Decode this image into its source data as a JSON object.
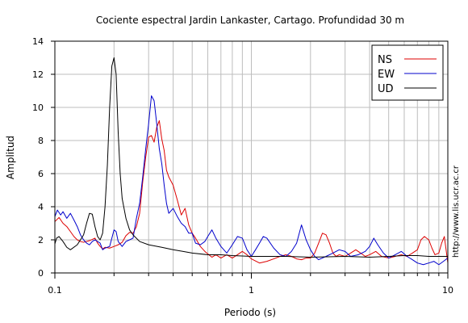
{
  "chart_data": {
    "type": "line",
    "title": "Cociente espectral Jardin Lankaster, Cartago. Profundidad 30 m",
    "xlabel": "Periodo (s)",
    "ylabel": "Amplitud",
    "xscale": "log",
    "xlim": [
      0.1,
      10
    ],
    "ylim": [
      0,
      14
    ],
    "x_tick_labels": [
      {
        "value": 0.1,
        "label": "0.1"
      },
      {
        "value": 1,
        "label": "1"
      },
      {
        "value": 10,
        "label": "10"
      }
    ],
    "y_ticks": [
      0,
      2,
      4,
      6,
      8,
      10,
      12,
      14
    ],
    "grid": true,
    "legend_position": "top-right",
    "side_text": "http://www.lis.ucr.ac.cr",
    "series": [
      {
        "name": "NS",
        "color": "#dd0000",
        "points": [
          [
            0.1,
            3.1
          ],
          [
            0.105,
            3.35
          ],
          [
            0.11,
            3.0
          ],
          [
            0.115,
            2.8
          ],
          [
            0.12,
            2.5
          ],
          [
            0.125,
            2.2
          ],
          [
            0.13,
            2.0
          ],
          [
            0.135,
            1.9
          ],
          [
            0.14,
            1.85
          ],
          [
            0.15,
            1.95
          ],
          [
            0.16,
            2.1
          ],
          [
            0.165,
            1.8
          ],
          [
            0.17,
            1.6
          ],
          [
            0.175,
            1.45
          ],
          [
            0.18,
            1.55
          ],
          [
            0.19,
            1.5
          ],
          [
            0.2,
            1.6
          ],
          [
            0.21,
            1.7
          ],
          [
            0.22,
            1.85
          ],
          [
            0.23,
            2.25
          ],
          [
            0.24,
            2.45
          ],
          [
            0.25,
            2.4
          ],
          [
            0.26,
            2.8
          ],
          [
            0.27,
            3.6
          ],
          [
            0.28,
            5.5
          ],
          [
            0.29,
            7.0
          ],
          [
            0.3,
            8.2
          ],
          [
            0.31,
            8.3
          ],
          [
            0.32,
            7.9
          ],
          [
            0.33,
            8.8
          ],
          [
            0.34,
            9.2
          ],
          [
            0.35,
            8.1
          ],
          [
            0.36,
            7.4
          ],
          [
            0.37,
            6.2
          ],
          [
            0.38,
            5.8
          ],
          [
            0.4,
            5.3
          ],
          [
            0.42,
            4.4
          ],
          [
            0.44,
            3.5
          ],
          [
            0.46,
            3.9
          ],
          [
            0.48,
            2.9
          ],
          [
            0.5,
            2.4
          ],
          [
            0.52,
            2.1
          ],
          [
            0.55,
            1.6
          ],
          [
            0.58,
            1.3
          ],
          [
            0.6,
            1.15
          ],
          [
            0.63,
            0.95
          ],
          [
            0.66,
            1.1
          ],
          [
            0.7,
            0.9
          ],
          [
            0.75,
            1.1
          ],
          [
            0.8,
            0.9
          ],
          [
            0.85,
            1.1
          ],
          [
            0.9,
            1.3
          ],
          [
            0.95,
            1.1
          ],
          [
            1.0,
            0.85
          ],
          [
            1.1,
            0.6
          ],
          [
            1.2,
            0.7
          ],
          [
            1.3,
            0.85
          ],
          [
            1.4,
            1.0
          ],
          [
            1.5,
            1.1
          ],
          [
            1.6,
            1.0
          ],
          [
            1.7,
            0.85
          ],
          [
            1.8,
            0.8
          ],
          [
            1.9,
            0.9
          ],
          [
            2.0,
            0.9
          ],
          [
            2.1,
            1.2
          ],
          [
            2.2,
            1.8
          ],
          [
            2.3,
            2.4
          ],
          [
            2.4,
            2.3
          ],
          [
            2.5,
            1.8
          ],
          [
            2.6,
            1.2
          ],
          [
            2.7,
            1.0
          ],
          [
            2.8,
            1.1
          ],
          [
            3.0,
            1.0
          ],
          [
            3.2,
            1.2
          ],
          [
            3.4,
            1.4
          ],
          [
            3.6,
            1.2
          ],
          [
            3.8,
            1.0
          ],
          [
            4.0,
            1.1
          ],
          [
            4.3,
            1.3
          ],
          [
            4.6,
            1.0
          ],
          [
            5.0,
            0.9
          ],
          [
            5.4,
            1.0
          ],
          [
            5.8,
            1.1
          ],
          [
            6.2,
            1.0
          ],
          [
            6.6,
            1.2
          ],
          [
            7.0,
            1.4
          ],
          [
            7.3,
            2.0
          ],
          [
            7.6,
            2.2
          ],
          [
            8.0,
            2.0
          ],
          [
            8.3,
            1.5
          ],
          [
            8.6,
            1.1
          ],
          [
            9.0,
            1.2
          ],
          [
            9.3,
            1.8
          ],
          [
            9.6,
            2.2
          ],
          [
            10.0,
            0.6
          ]
        ]
      },
      {
        "name": "EW",
        "color": "#0000cc",
        "points": [
          [
            0.1,
            3.4
          ],
          [
            0.103,
            3.8
          ],
          [
            0.107,
            3.5
          ],
          [
            0.11,
            3.7
          ],
          [
            0.115,
            3.3
          ],
          [
            0.12,
            3.6
          ],
          [
            0.125,
            3.2
          ],
          [
            0.13,
            2.8
          ],
          [
            0.135,
            2.3
          ],
          [
            0.14,
            2.0
          ],
          [
            0.145,
            1.8
          ],
          [
            0.15,
            1.7
          ],
          [
            0.155,
            1.9
          ],
          [
            0.16,
            2.0
          ],
          [
            0.17,
            1.8
          ],
          [
            0.175,
            1.4
          ],
          [
            0.18,
            1.5
          ],
          [
            0.19,
            1.6
          ],
          [
            0.2,
            2.6
          ],
          [
            0.205,
            2.5
          ],
          [
            0.21,
            1.9
          ],
          [
            0.22,
            1.6
          ],
          [
            0.23,
            1.9
          ],
          [
            0.24,
            2.0
          ],
          [
            0.25,
            2.1
          ],
          [
            0.26,
            3.3
          ],
          [
            0.27,
            4.2
          ],
          [
            0.28,
            5.8
          ],
          [
            0.29,
            7.5
          ],
          [
            0.3,
            9.0
          ],
          [
            0.31,
            10.7
          ],
          [
            0.32,
            10.4
          ],
          [
            0.33,
            9.0
          ],
          [
            0.34,
            7.5
          ],
          [
            0.35,
            6.6
          ],
          [
            0.36,
            5.3
          ],
          [
            0.37,
            4.2
          ],
          [
            0.38,
            3.6
          ],
          [
            0.4,
            3.9
          ],
          [
            0.42,
            3.4
          ],
          [
            0.44,
            3.0
          ],
          [
            0.46,
            2.8
          ],
          [
            0.48,
            2.4
          ],
          [
            0.5,
            2.4
          ],
          [
            0.52,
            1.8
          ],
          [
            0.55,
            1.7
          ],
          [
            0.58,
            1.9
          ],
          [
            0.6,
            2.2
          ],
          [
            0.63,
            2.6
          ],
          [
            0.66,
            2.1
          ],
          [
            0.7,
            1.6
          ],
          [
            0.75,
            1.2
          ],
          [
            0.8,
            1.7
          ],
          [
            0.85,
            2.2
          ],
          [
            0.9,
            2.1
          ],
          [
            0.95,
            1.4
          ],
          [
            1.0,
            1.0
          ],
          [
            1.05,
            1.4
          ],
          [
            1.1,
            1.8
          ],
          [
            1.15,
            2.2
          ],
          [
            1.2,
            2.1
          ],
          [
            1.3,
            1.5
          ],
          [
            1.4,
            1.1
          ],
          [
            1.5,
            1.0
          ],
          [
            1.6,
            1.3
          ],
          [
            1.7,
            1.8
          ],
          [
            1.8,
            2.9
          ],
          [
            1.9,
            2.0
          ],
          [
            2.0,
            1.4
          ],
          [
            2.1,
            1.0
          ],
          [
            2.2,
            0.8
          ],
          [
            2.4,
            1.0
          ],
          [
            2.6,
            1.2
          ],
          [
            2.8,
            1.4
          ],
          [
            3.0,
            1.3
          ],
          [
            3.2,
            1.0
          ],
          [
            3.5,
            1.1
          ],
          [
            3.8,
            1.3
          ],
          [
            4.0,
            1.6
          ],
          [
            4.2,
            2.1
          ],
          [
            4.4,
            1.7
          ],
          [
            4.7,
            1.2
          ],
          [
            5.0,
            0.9
          ],
          [
            5.4,
            1.1
          ],
          [
            5.8,
            1.3
          ],
          [
            6.2,
            1.0
          ],
          [
            6.6,
            0.8
          ],
          [
            7.0,
            0.6
          ],
          [
            7.5,
            0.5
          ],
          [
            8.0,
            0.6
          ],
          [
            8.5,
            0.7
          ],
          [
            9.0,
            0.5
          ],
          [
            9.5,
            0.7
          ],
          [
            10.0,
            0.9
          ]
        ]
      },
      {
        "name": "UD",
        "color": "#000000",
        "points": [
          [
            0.1,
            1.75
          ],
          [
            0.102,
            2.1
          ],
          [
            0.105,
            2.2
          ],
          [
            0.11,
            1.9
          ],
          [
            0.115,
            1.55
          ],
          [
            0.12,
            1.4
          ],
          [
            0.13,
            1.7
          ],
          [
            0.14,
            2.3
          ],
          [
            0.145,
            3.0
          ],
          [
            0.15,
            3.6
          ],
          [
            0.155,
            3.55
          ],
          [
            0.16,
            2.8
          ],
          [
            0.165,
            2.2
          ],
          [
            0.17,
            2.0
          ],
          [
            0.175,
            2.4
          ],
          [
            0.18,
            4.0
          ],
          [
            0.185,
            6.5
          ],
          [
            0.19,
            10.0
          ],
          [
            0.195,
            12.5
          ],
          [
            0.2,
            13.0
          ],
          [
            0.205,
            12.0
          ],
          [
            0.21,
            8.5
          ],
          [
            0.215,
            6.0
          ],
          [
            0.22,
            4.5
          ],
          [
            0.23,
            3.3
          ],
          [
            0.24,
            2.6
          ],
          [
            0.25,
            2.3
          ],
          [
            0.27,
            1.9
          ],
          [
            0.3,
            1.7
          ],
          [
            0.35,
            1.55
          ],
          [
            0.4,
            1.4
          ],
          [
            0.45,
            1.3
          ],
          [
            0.5,
            1.2
          ],
          [
            0.6,
            1.1
          ],
          [
            0.7,
            1.1
          ],
          [
            0.8,
            1.05
          ],
          [
            1.0,
            1.0
          ],
          [
            1.5,
            1.0
          ],
          [
            2.0,
            0.95
          ],
          [
            3.0,
            1.0
          ],
          [
            4.0,
            0.95
          ],
          [
            5.0,
            1.0
          ],
          [
            6.0,
            1.05
          ],
          [
            7.0,
            1.05
          ],
          [
            8.0,
            1.0
          ],
          [
            9.0,
            1.0
          ],
          [
            10.0,
            1.0
          ]
        ]
      }
    ]
  }
}
